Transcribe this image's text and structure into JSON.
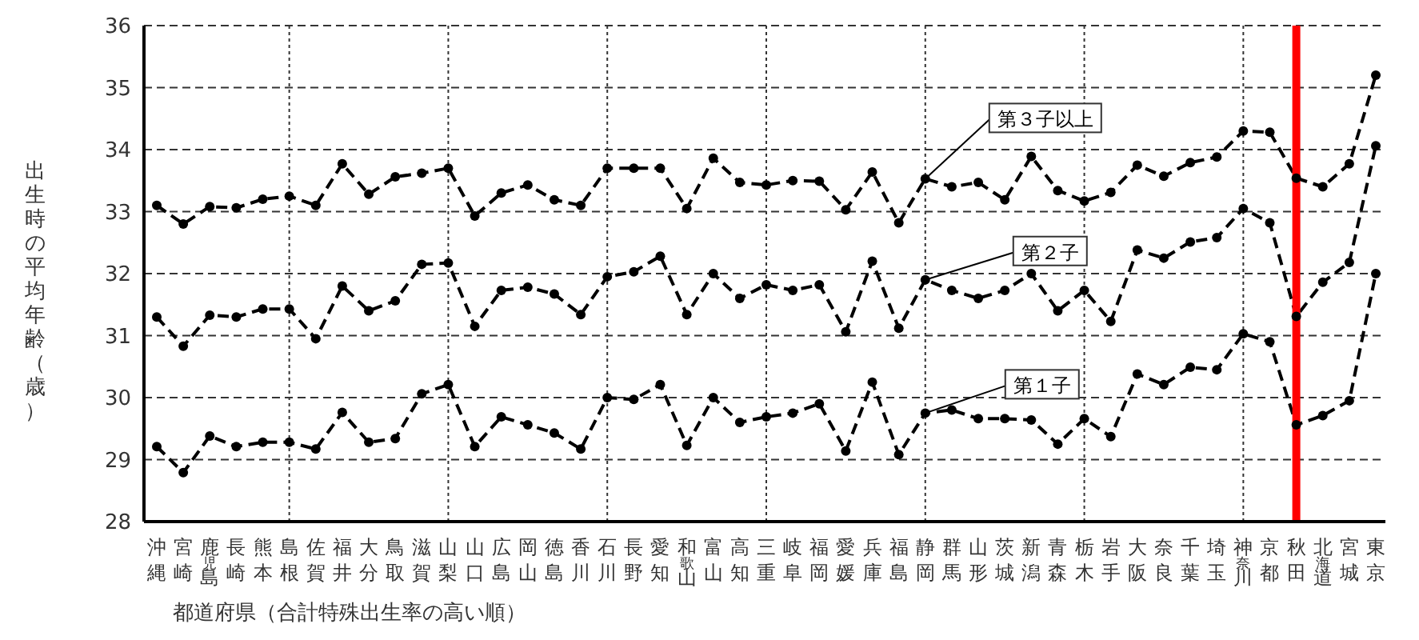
{
  "chart_data": {
    "type": "line",
    "xlabel": "都道府県（合計特殊出生率の高い順）",
    "ylabel": "出生時の平均年齢（歳）",
    "categories": [
      "沖縄",
      "宮崎",
      "鹿児島",
      "長崎",
      "熊本",
      "島根",
      "佐賀",
      "福井",
      "大分",
      "鳥取",
      "滋賀",
      "山梨",
      "山口",
      "広島",
      "岡山",
      "徳島",
      "香川",
      "石川",
      "長野",
      "愛知",
      "和歌山",
      "富山",
      "高知",
      "三重",
      "岐阜",
      "福岡",
      "愛媛",
      "兵庫",
      "福島",
      "静岡",
      "群馬",
      "山形",
      "茨城",
      "新潟",
      "青森",
      "栃木",
      "岩手",
      "大阪",
      "奈良",
      "千葉",
      "埼玉",
      "神奈川",
      "京都",
      "秋田",
      "北海道",
      "宮城",
      "東京"
    ],
    "series": [
      {
        "name": "第３子以上",
        "color": "#000000",
        "line_style": "dashed",
        "values": [
          33.1,
          32.8,
          33.08,
          33.06,
          33.2,
          33.25,
          33.1,
          33.77,
          33.28,
          33.56,
          33.62,
          33.7,
          32.93,
          33.3,
          33.43,
          33.19,
          33.1,
          33.7,
          33.7,
          33.7,
          33.05,
          33.86,
          33.47,
          33.43,
          33.5,
          33.49,
          33.03,
          33.64,
          32.82,
          33.53,
          33.4,
          33.47,
          33.19,
          33.89,
          33.34,
          33.17,
          33.31,
          33.75,
          33.57,
          33.79,
          33.88,
          34.3,
          34.28,
          33.54,
          33.4,
          33.77,
          35.2
        ]
      },
      {
        "name": "第２子",
        "color": "#000000",
        "line_style": "dashed",
        "values": [
          31.3,
          30.83,
          31.33,
          31.3,
          31.43,
          31.43,
          30.95,
          31.8,
          31.4,
          31.56,
          32.15,
          32.17,
          31.15,
          31.73,
          31.78,
          31.67,
          31.34,
          31.95,
          32.03,
          32.28,
          31.34,
          32.0,
          31.6,
          31.82,
          31.73,
          31.82,
          31.06,
          32.2,
          31.12,
          31.9,
          31.73,
          31.6,
          31.73,
          32.0,
          31.4,
          31.73,
          31.23,
          32.38,
          32.25,
          32.51,
          32.58,
          33.05,
          32.82,
          31.31,
          31.86,
          32.18,
          34.06
        ]
      },
      {
        "name": "第１子",
        "color": "#000000",
        "line_style": "dashed",
        "values": [
          29.21,
          28.79,
          29.38,
          29.21,
          29.28,
          29.28,
          29.17,
          29.76,
          29.28,
          29.34,
          30.06,
          30.21,
          29.21,
          29.69,
          29.56,
          29.43,
          29.17,
          30.0,
          29.97,
          30.21,
          29.23,
          30.0,
          29.6,
          29.69,
          29.75,
          29.9,
          29.14,
          30.25,
          29.08,
          29.75,
          29.8,
          29.66,
          29.66,
          29.64,
          29.25,
          29.66,
          29.37,
          30.38,
          30.21,
          30.49,
          30.45,
          31.03,
          30.9,
          29.56,
          29.71,
          29.95,
          32.0
        ]
      }
    ],
    "ylim": [
      28,
      36
    ],
    "yticks": [
      28,
      29,
      30,
      31,
      32,
      33,
      34,
      35,
      36
    ],
    "grid": true,
    "marker": "circle",
    "ref_lines": [
      {
        "axis": "x",
        "value": "秋田",
        "color": "#ff0000"
      }
    ]
  }
}
